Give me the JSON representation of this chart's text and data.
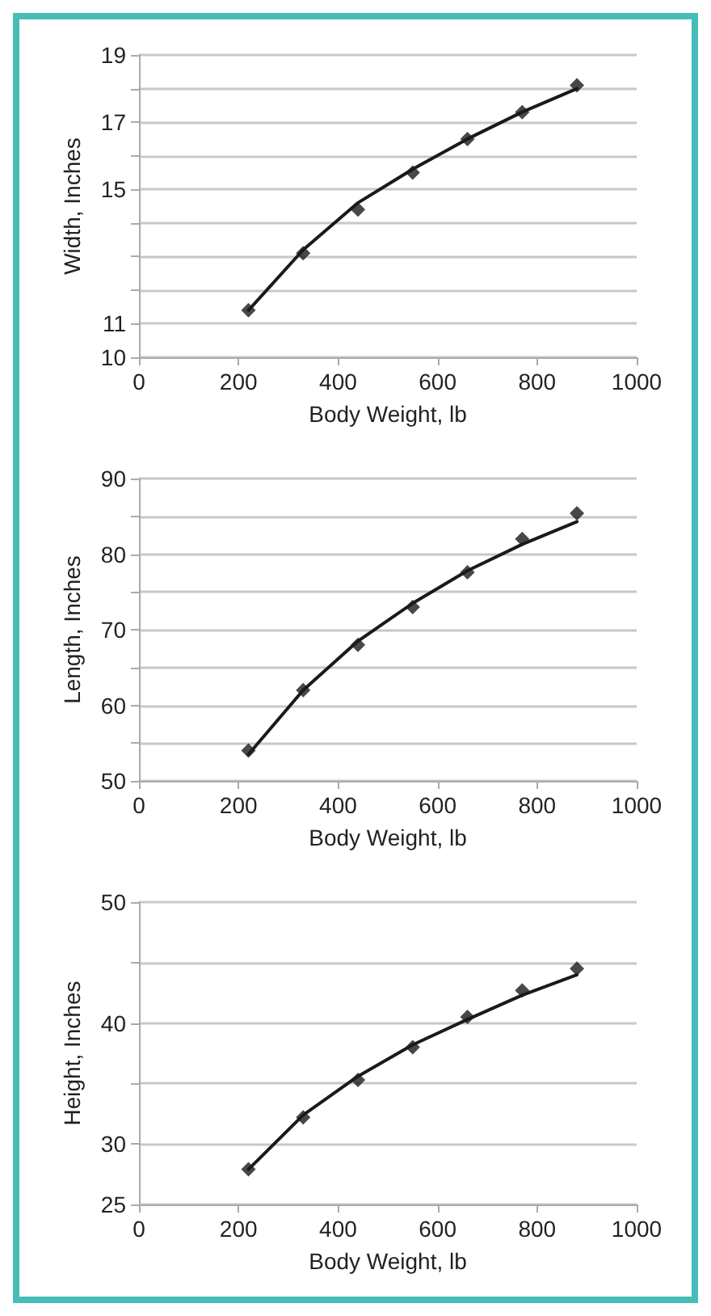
{
  "chart_data": [
    {
      "type": "scatter",
      "xlabel": "Body Weight, lb",
      "ylabel": "Width, Inches",
      "x": [
        220,
        330,
        440,
        550,
        660,
        770,
        880
      ],
      "xlim": [
        0,
        1000
      ],
      "xticks": [
        0,
        200,
        400,
        600,
        800,
        1000
      ],
      "ylim": [
        10,
        19
      ],
      "yticks": [
        10,
        11,
        {
          "value": 12,
          "label": null
        },
        {
          "value": 13,
          "label": null
        },
        {
          "value": 14,
          "label": null
        },
        15,
        {
          "value": 16,
          "label": null
        },
        17,
        {
          "value": 18,
          "label": null
        },
        19
      ],
      "grid": "y",
      "marker": "diamond",
      "series": [
        {
          "type": "scatter",
          "color": "#1a1a1a",
          "values": [
            11.4,
            13.1,
            14.4,
            15.5,
            16.5,
            17.3,
            18.1
          ]
        },
        {
          "type": "line",
          "color": "#1a1a1a",
          "marker": "none",
          "line_style": "solid",
          "values": [
            11.4,
            13.2,
            14.6,
            15.6,
            16.5,
            17.3,
            18.0
          ]
        }
      ]
    },
    {
      "type": "scatter",
      "xlabel": "Body Weight, lb",
      "ylabel": "Length, Inches",
      "x": [
        220,
        330,
        440,
        550,
        660,
        770,
        880
      ],
      "xlim": [
        0,
        1000
      ],
      "xticks": [
        0,
        200,
        400,
        600,
        800,
        1000
      ],
      "ylim": [
        50,
        90
      ],
      "yticks": [
        50,
        {
          "value": 55,
          "label": null
        },
        60,
        {
          "value": 65,
          "label": null
        },
        70,
        {
          "value": 75,
          "label": null
        },
        80,
        {
          "value": 85,
          "label": null
        },
        90
      ],
      "grid": "y",
      "marker": "diamond",
      "series": [
        {
          "type": "scatter",
          "color": "#1a1a1a",
          "values": [
            54,
            62,
            68,
            73,
            77.6,
            82,
            85.4
          ]
        },
        {
          "type": "line",
          "color": "#1a1a1a",
          "marker": "none",
          "line_style": "solid",
          "values": [
            53.5,
            62,
            68.5,
            73.5,
            77.8,
            81.3,
            84.3
          ]
        }
      ]
    },
    {
      "type": "scatter",
      "xlabel": "Body Weight, lb",
      "ylabel": "Height, Inches",
      "x": [
        220,
        330,
        440,
        550,
        660,
        770,
        880
      ],
      "xlim": [
        0,
        1000
      ],
      "xticks": [
        0,
        200,
        400,
        600,
        800,
        1000
      ],
      "ylim": [
        25,
        50
      ],
      "yticks": [
        25,
        30,
        {
          "value": 35,
          "label": null
        },
        40,
        {
          "value": 45,
          "label": null
        },
        50
      ],
      "grid": "y",
      "marker": "diamond",
      "series": [
        {
          "type": "scatter",
          "color": "#1a1a1a",
          "values": [
            27.9,
            32.2,
            35.3,
            38,
            40.5,
            42.7,
            44.5
          ]
        },
        {
          "type": "line",
          "color": "#1a1a1a",
          "marker": "none",
          "line_style": "solid",
          "values": [
            27.9,
            32.4,
            35.6,
            38.2,
            40.3,
            42.3,
            44
          ]
        }
      ]
    }
  ]
}
